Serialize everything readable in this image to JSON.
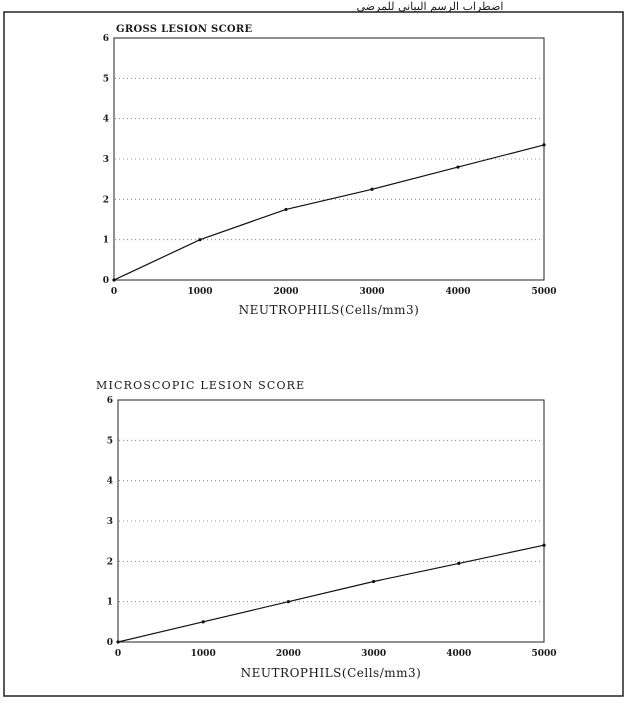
{
  "header_fragment": "اضطراب الرسم البياني للمرضى",
  "chart_data": [
    {
      "type": "line",
      "title": "GROSS LESION SCORE",
      "xlabel": "NEUTROPHILS(Cells/mm3)",
      "ylabel": "",
      "xlim": [
        0,
        5000
      ],
      "ylim": [
        0,
        6
      ],
      "xticks": [
        0,
        1000,
        2000,
        3000,
        4000,
        5000
      ],
      "yticks": [
        0,
        1,
        2,
        3,
        4,
        5,
        6
      ],
      "grid": "horizontal-dotted",
      "series": [
        {
          "x": [
            0,
            1000,
            2000,
            3000,
            4000,
            5000
          ],
          "y": [
            0,
            1.0,
            1.75,
            2.25,
            2.8,
            3.35
          ]
        }
      ]
    },
    {
      "type": "line",
      "title": "MICROSCOPIC LESION SCORE",
      "xlabel": "NEUTROPHILS(Cells/mm3)",
      "ylabel": "",
      "xlim": [
        0,
        5000
      ],
      "ylim": [
        0,
        6
      ],
      "xticks": [
        0,
        1000,
        2000,
        3000,
        4000,
        5000
      ],
      "yticks": [
        0,
        1,
        2,
        3,
        4,
        5,
        6
      ],
      "grid": "horizontal-dotted",
      "series": [
        {
          "x": [
            0,
            1000,
            2000,
            3000,
            4000,
            5000
          ],
          "y": [
            0,
            0.5,
            1.0,
            1.5,
            1.95,
            2.4
          ]
        }
      ]
    }
  ]
}
